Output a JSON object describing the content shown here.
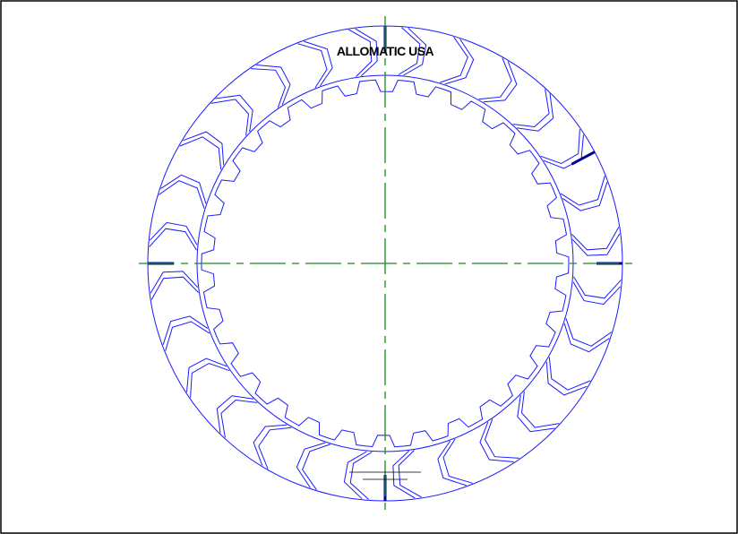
{
  "diagram": {
    "brand_text": "ALLOMATIC USA"
  }
}
